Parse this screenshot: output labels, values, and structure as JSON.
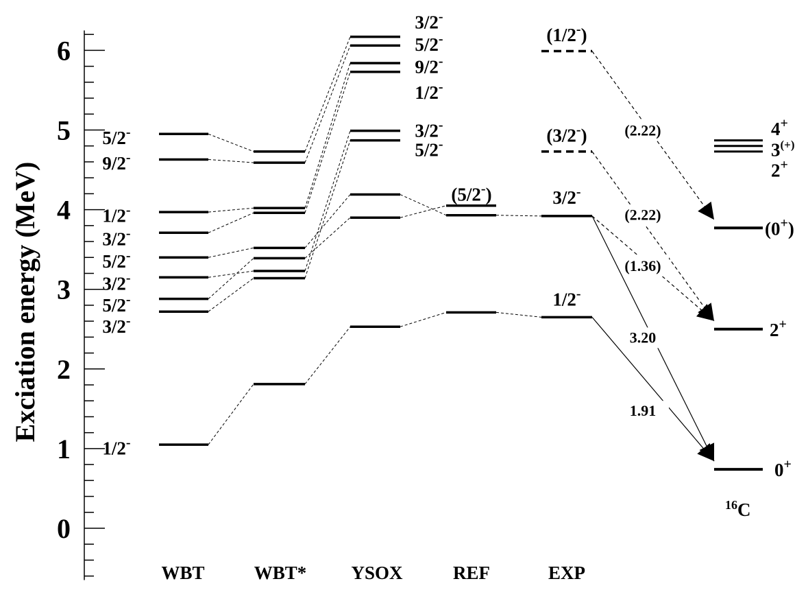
{
  "axis": {
    "title": "Exciation energy (MeV)",
    "ylim": [
      -0.65,
      6.25
    ],
    "major_ticks": [
      0,
      1,
      2,
      3,
      4,
      5,
      6
    ],
    "minor_step": 0.2
  },
  "columns": [
    {
      "id": "wbt",
      "label": "WBT",
      "levels": [
        {
          "energy": 1.05,
          "label": "1/2",
          "sup": "-"
        },
        {
          "energy": 2.72,
          "label": "3/2",
          "sup": "-"
        },
        {
          "energy": 2.88,
          "label": "5/2",
          "sup": "-"
        },
        {
          "energy": 3.15,
          "label": "3/2",
          "sup": "-"
        },
        {
          "energy": 3.4,
          "label": "5/2",
          "sup": "-"
        },
        {
          "energy": 3.71,
          "label": "3/2",
          "sup": "-"
        },
        {
          "energy": 3.97,
          "label": "1/2",
          "sup": "-"
        },
        {
          "energy": 4.63,
          "label": "9/2",
          "sup": "-"
        },
        {
          "energy": 4.95,
          "label": "5/2",
          "sup": "-"
        }
      ]
    },
    {
      "id": "wbt-star",
      "label": "WBT*",
      "levels": [
        {
          "energy": 1.81
        },
        {
          "energy": 3.14
        },
        {
          "energy": 3.23
        },
        {
          "energy": 3.39
        },
        {
          "energy": 3.52
        },
        {
          "energy": 3.96
        },
        {
          "energy": 4.02
        },
        {
          "energy": 4.59
        },
        {
          "energy": 4.73
        }
      ]
    },
    {
      "id": "ysox",
      "label": "YSOX",
      "levels": [
        {
          "energy": 2.53
        },
        {
          "energy": 3.9
        },
        {
          "energy": 4.19
        },
        {
          "energy": 4.87,
          "label": "5/2",
          "sup": "-"
        },
        {
          "energy": 4.99,
          "label": "3/2",
          "sup": "-"
        },
        {
          "energy": 5.73,
          "label": "1/2",
          "sup": "-"
        },
        {
          "energy": 5.84,
          "label": "9/2",
          "sup": "-"
        },
        {
          "energy": 6.06,
          "label": "5/2",
          "sup": "-"
        },
        {
          "energy": 6.17,
          "label": "3/2",
          "sup": "-"
        }
      ]
    },
    {
      "id": "ref",
      "label": "REF",
      "levels": [
        {
          "energy": 2.71
        },
        {
          "energy": 3.93
        },
        {
          "energy": 4.05,
          "label": "(5/2",
          "sup": "-",
          "suffix": ")"
        }
      ]
    },
    {
      "id": "exp",
      "label": "EXP",
      "levels": [
        {
          "energy": 2.65,
          "label": "1/2",
          "sup": "-"
        },
        {
          "energy": 3.92,
          "label": "3/2",
          "sup": "-"
        },
        {
          "energy": 4.73,
          "label": "(3/2",
          "sup": "-",
          "suffix": ")",
          "dashed": true
        },
        {
          "energy": 5.99,
          "label": "(1/2",
          "sup": "-",
          "suffix": ")",
          "dashed": true
        }
      ]
    }
  ],
  "c16": {
    "label": "C",
    "mass_number": "16",
    "levels": [
      {
        "energy": 0.74,
        "label": "0",
        "sup": "+"
      },
      {
        "energy": 2.5,
        "label": "2",
        "sup": "+"
      },
      {
        "energy": 3.77,
        "label": "(0",
        "sup": "+",
        "suffix": ")"
      },
      {
        "energy": 4.73,
        "label": "2",
        "sup": "+"
      },
      {
        "energy": 4.8,
        "label": "3",
        "sup": "(+)"
      },
      {
        "energy": 4.87,
        "label": "4",
        "sup": "+"
      }
    ]
  },
  "decays": [
    {
      "from_energy": 5.99,
      "to_energy": 3.77,
      "value": "(2.22)",
      "dashed": true
    },
    {
      "from_energy": 4.73,
      "to_energy": 2.5,
      "value": "(2.22)",
      "dashed": true
    },
    {
      "from_energy": 3.92,
      "to_energy": 2.5,
      "value": "(1.36)",
      "dashed": true
    },
    {
      "from_energy": 3.92,
      "to_energy": 0.74,
      "value": "3.20",
      "dashed": false
    },
    {
      "from_energy": 2.65,
      "to_energy": 0.74,
      "value": "1.91",
      "dashed": false
    }
  ]
}
